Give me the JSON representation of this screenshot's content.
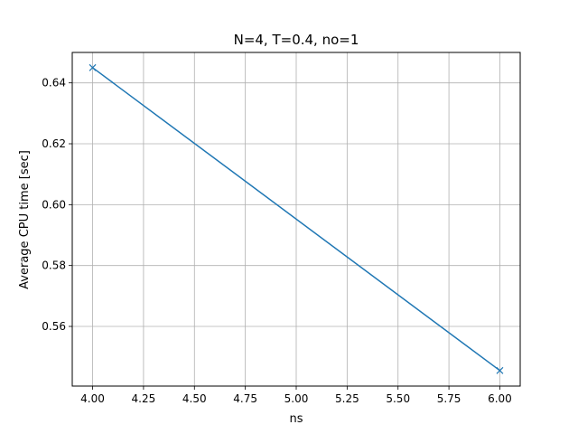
{
  "chart_data": {
    "type": "line",
    "title": "N=4, T=0.4, no=1",
    "xlabel": "ns",
    "ylabel": "Average CPU time [sec]",
    "xlim": [
      3.9,
      6.1
    ],
    "ylim": [
      0.5404,
      0.65
    ],
    "x_ticks": [
      4.0,
      4.25,
      4.5,
      4.75,
      5.0,
      5.25,
      5.5,
      5.75,
      6.0
    ],
    "x_tick_labels": [
      "4.00",
      "4.25",
      "4.50",
      "4.75",
      "5.00",
      "5.25",
      "5.50",
      "5.75",
      "6.00"
    ],
    "y_ticks": [
      0.56,
      0.58,
      0.6,
      0.62,
      0.64
    ],
    "y_tick_labels": [
      "0.56",
      "0.58",
      "0.60",
      "0.62",
      "0.64"
    ],
    "grid": true,
    "series": [
      {
        "x": [
          4.0,
          6.0
        ],
        "y": [
          0.645,
          0.5455
        ],
        "color": "#1f77b4",
        "marker": "x"
      }
    ]
  }
}
